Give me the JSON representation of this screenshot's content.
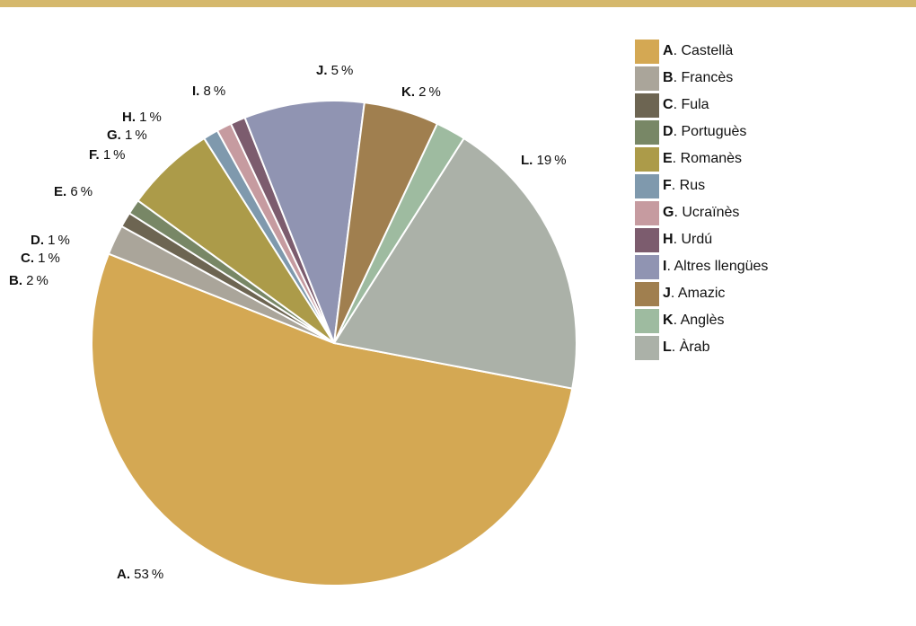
{
  "chart_data": {
    "type": "pie",
    "title": "",
    "legend_position": "right",
    "slices": [
      {
        "letter": "A",
        "label": "Castellà",
        "value": 53,
        "color": "#d4a853"
      },
      {
        "letter": "B",
        "label": "Francès",
        "value": 2,
        "color": "#aaa59a"
      },
      {
        "letter": "C",
        "label": "Fula",
        "value": 1,
        "color": "#6d6552"
      },
      {
        "letter": "D",
        "label": "Portuguès",
        "value": 1,
        "color": "#788766"
      },
      {
        "letter": "E",
        "label": "Romanès",
        "value": 6,
        "color": "#ac9b49"
      },
      {
        "letter": "F",
        "label": "Rus",
        "value": 1,
        "color": "#7f99ad"
      },
      {
        "letter": "G",
        "label": "Ucraïnès",
        "value": 1,
        "color": "#c69ba0"
      },
      {
        "letter": "H",
        "label": "Urdú",
        "value": 1,
        "color": "#7c5c6e"
      },
      {
        "letter": "I",
        "label": "Altres llengües",
        "value": 8,
        "color": "#9094b2"
      },
      {
        "letter": "J",
        "label": "Amazic",
        "value": 5,
        "color": "#a07f4f"
      },
      {
        "letter": "K",
        "label": "Anglès",
        "value": 2,
        "color": "#9ebba0"
      },
      {
        "letter": "L",
        "label": "Àrab",
        "value": 19,
        "color": "#abb1a8"
      }
    ]
  }
}
